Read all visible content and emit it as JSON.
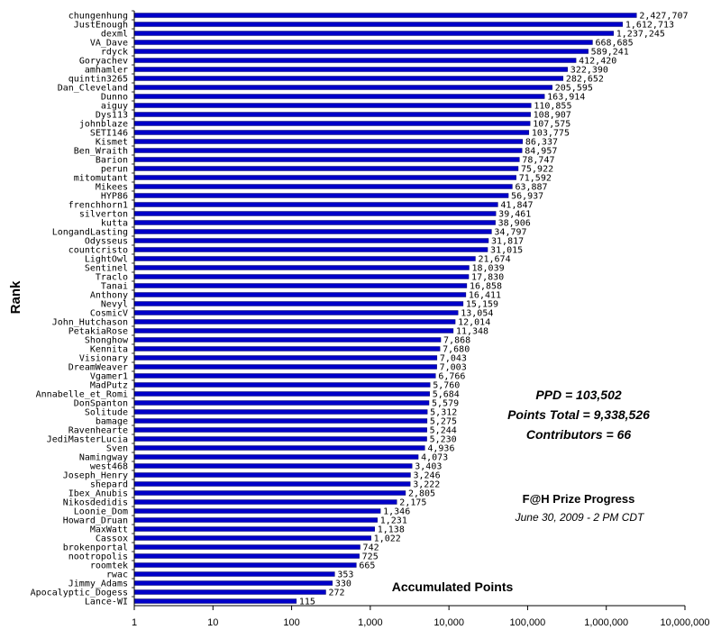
{
  "chart_data": {
    "type": "bar",
    "orientation": "horizontal",
    "x_scale": "log",
    "xlim": [
      1,
      10000000
    ],
    "xlabel": "Accumulated Points",
    "ylabel": "Rank",
    "bar_color": "#0000c8",
    "x_ticks": [
      {
        "value": 1,
        "label": "1"
      },
      {
        "value": 10,
        "label": "10"
      },
      {
        "value": 100,
        "label": "100"
      },
      {
        "value": 1000,
        "label": "1,000"
      },
      {
        "value": 10000,
        "label": "10,000"
      },
      {
        "value": 100000,
        "label": "100,000"
      },
      {
        "value": 1000000,
        "label": "1,000,000"
      },
      {
        "value": 10000000,
        "label": "10,000,000"
      }
    ],
    "categories": [
      "chungenhung",
      "JustEnough",
      "dexml",
      "VA_Dave",
      "rdyck",
      "Goryachev",
      "amhamler",
      "quintin3265",
      "Dan_Cleveland",
      "Dunno",
      "aiguy",
      "Dys113",
      "johnblaze",
      "SETI146",
      "Kismet",
      "Ben_Wraith",
      "Barion",
      "perun",
      "mitomutant",
      "Mikees",
      "HYP86",
      "frenchhorn1",
      "silverton",
      "kutta",
      "LongandLasting",
      "Odysseus",
      "countcristo",
      "LightOwl",
      "Sentinel",
      "Traclo",
      "Tanai",
      "Anthony",
      "Nevyl",
      "CosmicV",
      "John_Hutchason",
      "PetakiaRose",
      "Shonghow",
      "Kennita",
      "Visionary",
      "DreamWeaver",
      "Vgamer1",
      "MadPutz",
      "Annabelle_et_Romi",
      "DonSpanton",
      "Solitude",
      "bamage",
      "Ravenhearte",
      "JediMasterLucia",
      "Sven",
      "Namingway",
      "west468",
      "Joseph_Henry",
      "shepard",
      "Ibex_Anubis",
      "Nikosdedidis",
      "Loonie_Dom",
      "Howard_Druan",
      "MaxWatt",
      "Cassox",
      "brokenportal",
      "nootropolis",
      "roomtek",
      "rwac",
      "Jimmy_Adams",
      "Apocalyptic_Dogess",
      "Lance-WI"
    ],
    "values": [
      2427707,
      1612713,
      1237245,
      668685,
      589241,
      412420,
      322390,
      282652,
      205595,
      163914,
      110855,
      108907,
      107575,
      103775,
      86337,
      84957,
      78747,
      75922,
      71592,
      63887,
      56937,
      41847,
      39461,
      38906,
      34797,
      31817,
      31015,
      21674,
      18039,
      17830,
      16858,
      16411,
      15159,
      13054,
      12014,
      11348,
      7868,
      7680,
      7043,
      7003,
      6766,
      5760,
      5684,
      5579,
      5312,
      5275,
      5244,
      5230,
      4936,
      4073,
      3403,
      3246,
      3222,
      2805,
      2175,
      1346,
      1231,
      1138,
      1022,
      742,
      725,
      665,
      353,
      330,
      272,
      115
    ],
    "value_labels": [
      "2,427,707",
      "1,612,713",
      "1,237,245",
      "668,685",
      "589,241",
      "412,420",
      "322,390",
      "282,652",
      "205,595",
      "163,914",
      "110,855",
      "108,907",
      "107,575",
      "103,775",
      "86,337",
      "84,957",
      "78,747",
      "75,922",
      "71,592",
      "63,887",
      "56,937",
      "41,847",
      "39,461",
      "38,906",
      "34,797",
      "31,817",
      "31,015",
      "21,674",
      "18,039",
      "17,830",
      "16,858",
      "16,411",
      "15,159",
      "13,054",
      "12,014",
      "11,348",
      "7,868",
      "7,680",
      "7,043",
      "7,003",
      "6,766",
      "5,760",
      "5,684",
      "5,579",
      "5,312",
      "5,275",
      "5,244",
      "5,230",
      "4,936",
      "4,073",
      "3,403",
      "3,246",
      "3,222",
      "2,805",
      "2,175",
      "1,346",
      "1,231",
      "1,138",
      "1,022",
      "742",
      "725",
      "665",
      "353",
      "330",
      "272",
      "115"
    ],
    "annotations": {
      "ppd": "PPD = 103,502",
      "points_total": "Points Total = 9,338,526",
      "contributors": "Contributors = 66",
      "title": "F@H Prize Progress",
      "subtitle": "June 30, 2009 - 2 PM CDT"
    }
  }
}
